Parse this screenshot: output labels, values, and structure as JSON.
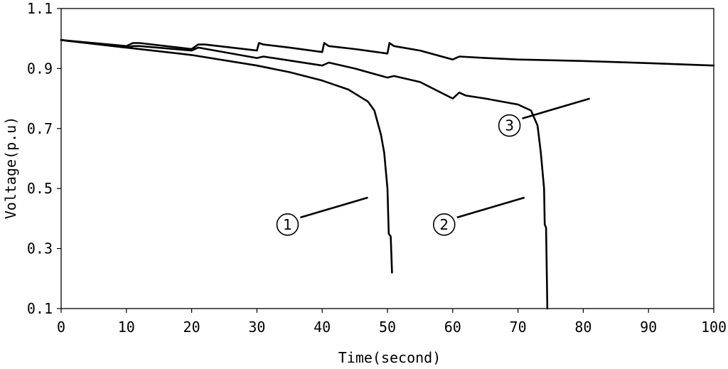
{
  "chart_data": {
    "type": "line",
    "title": "",
    "xlabel": "Time(second)",
    "ylabel": "Voltage(p.u)",
    "xlim": [
      0,
      100
    ],
    "ylim": [
      0.1,
      1.1
    ],
    "x_ticks": [
      "0",
      "10",
      "20",
      "30",
      "40",
      "50",
      "60",
      "70",
      "80",
      "90",
      "100"
    ],
    "y_ticks": [
      "0.1",
      "0.3",
      "0.5",
      "0.7",
      "0.9",
      "1.1"
    ],
    "grid": false,
    "legend": "none",
    "series": [
      {
        "marker": "1",
        "label_at": [
          47,
          0.47
        ],
        "points": [
          [
            0,
            0.995
          ],
          [
            10,
            0.97
          ],
          [
            20,
            0.945
          ],
          [
            30,
            0.91
          ],
          [
            35,
            0.888
          ],
          [
            40,
            0.86
          ],
          [
            44,
            0.83
          ],
          [
            47,
            0.79
          ],
          [
            48,
            0.76
          ],
          [
            48.5,
            0.72
          ],
          [
            49,
            0.68
          ],
          [
            49.5,
            0.62
          ],
          [
            50,
            0.5
          ],
          [
            50.2,
            0.35
          ],
          [
            50.5,
            0.34
          ],
          [
            50.7,
            0.22
          ]
        ]
      },
      {
        "marker": "2",
        "label_at": [
          71,
          0.47
        ],
        "points": [
          [
            0,
            0.995
          ],
          [
            10,
            0.97
          ],
          [
            11,
            0.975
          ],
          [
            12,
            0.975
          ],
          [
            20,
            0.96
          ],
          [
            21,
            0.97
          ],
          [
            30,
            0.935
          ],
          [
            31,
            0.94
          ],
          [
            40,
            0.91
          ],
          [
            41,
            0.92
          ],
          [
            45,
            0.9
          ],
          [
            50,
            0.87
          ],
          [
            51,
            0.875
          ],
          [
            55,
            0.855
          ],
          [
            60,
            0.8
          ],
          [
            61,
            0.82
          ],
          [
            62,
            0.81
          ],
          [
            65,
            0.8
          ],
          [
            70,
            0.78
          ],
          [
            72,
            0.76
          ],
          [
            73,
            0.71
          ],
          [
            73.5,
            0.62
          ],
          [
            74,
            0.5
          ],
          [
            74.1,
            0.38
          ],
          [
            74.3,
            0.37
          ],
          [
            74.5,
            0.1
          ]
        ]
      },
      {
        "marker": "3",
        "label_at": [
          81,
          0.8
        ],
        "points": [
          [
            0,
            0.995
          ],
          [
            10,
            0.975
          ],
          [
            11,
            0.985
          ],
          [
            12,
            0.985
          ],
          [
            20,
            0.965
          ],
          [
            21,
            0.98
          ],
          [
            22,
            0.98
          ],
          [
            30,
            0.96
          ],
          [
            30.3,
            0.985
          ],
          [
            31,
            0.98
          ],
          [
            35,
            0.97
          ],
          [
            40,
            0.955
          ],
          [
            40.3,
            0.985
          ],
          [
            41,
            0.975
          ],
          [
            45,
            0.965
          ],
          [
            50,
            0.95
          ],
          [
            50.3,
            0.985
          ],
          [
            51,
            0.975
          ],
          [
            55,
            0.96
          ],
          [
            60,
            0.93
          ],
          [
            61,
            0.94
          ],
          [
            65,
            0.935
          ],
          [
            70,
            0.93
          ],
          [
            80,
            0.925
          ],
          [
            90,
            0.918
          ],
          [
            100,
            0.91
          ]
        ]
      }
    ]
  }
}
